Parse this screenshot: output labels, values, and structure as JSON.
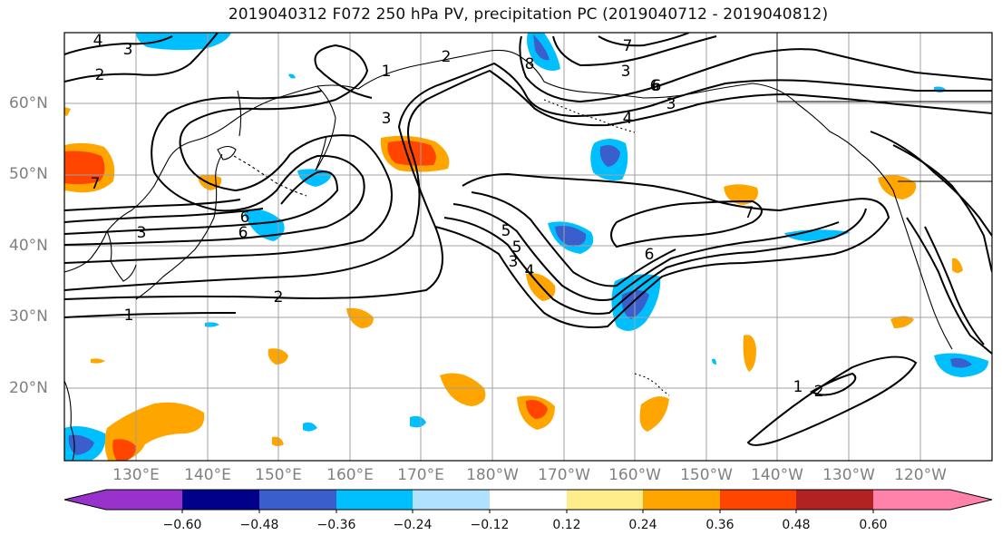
{
  "title": "2019040312 F072 250 hPa PV, precipitation PC (2019040712 - 2019040812)",
  "axes": {
    "lat_labels": [
      "60°N",
      "50°N",
      "40°N",
      "30°N",
      "20°N"
    ],
    "lon_labels": [
      "130°E",
      "140°E",
      "150°E",
      "160°E",
      "170°E",
      "180°W",
      "170°W",
      "160°W",
      "150°W",
      "140°W",
      "130°W",
      "120°W"
    ]
  },
  "contour_labels": [
    "4",
    "3",
    "2",
    "1",
    "2",
    "3",
    "7",
    "6",
    "6",
    "4",
    "3",
    "8",
    "3",
    "7",
    "3",
    "5",
    "6",
    "7",
    "6",
    "5",
    "4",
    "3",
    "2",
    "1",
    "1",
    "2",
    "6"
  ],
  "colorbar": {
    "tick_labels": [
      "−0.60",
      "−0.48",
      "−0.36",
      "−0.24",
      "−0.12",
      "0.12",
      "0.24",
      "0.36",
      "0.48",
      "0.60"
    ],
    "colors": [
      "#9932cc",
      "#00008b",
      "#3a5fcd",
      "#00bfff",
      "#b0e2ff",
      "#ffffff",
      "#ffec8b",
      "#ffa500",
      "#ff4500",
      "#b22222",
      "#ff82ab"
    ]
  },
  "colors": {
    "contour": "#000000",
    "grid": "#a0a0a0",
    "coast": "#000000"
  }
}
